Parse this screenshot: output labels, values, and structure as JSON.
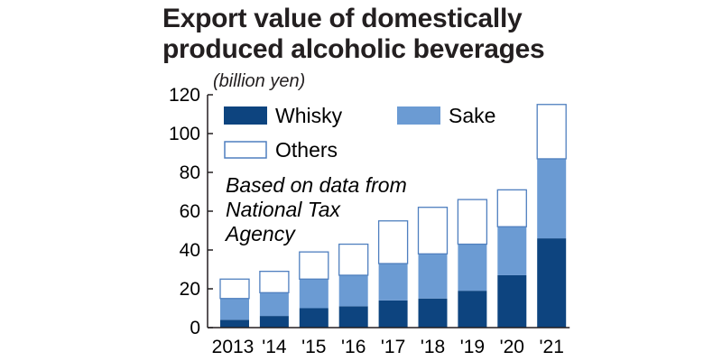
{
  "chart_data": {
    "type": "bar",
    "stacked": true,
    "title_line1": "Export value of domestically",
    "title_line2": "produced alcoholic beverages",
    "unit": "(billion yen)",
    "note_lines": [
      "Based on data from",
      "National Tax",
      "Agency"
    ],
    "categories": [
      "2013",
      "'14",
      "'15",
      "'16",
      "'17",
      "'18",
      "'19",
      "'20",
      "'21"
    ],
    "ylim": [
      0,
      120
    ],
    "yticks": [
      0,
      20,
      40,
      60,
      80,
      100,
      120
    ],
    "grid": false,
    "legend_position": "top-left",
    "series": [
      {
        "name": "Whisky",
        "color": "#0d447f",
        "values": [
          4,
          6,
          10,
          11,
          14,
          15,
          19,
          27,
          46
        ]
      },
      {
        "name": "Sake",
        "color": "#6b9bd3",
        "values": [
          11,
          12,
          15,
          16,
          19,
          23,
          24,
          25,
          41
        ]
      },
      {
        "name": "Others",
        "color": "#ffffff",
        "stroke": "#4f7fbf",
        "values": [
          10,
          11,
          14,
          16,
          22,
          24,
          23,
          19,
          28
        ]
      }
    ]
  }
}
